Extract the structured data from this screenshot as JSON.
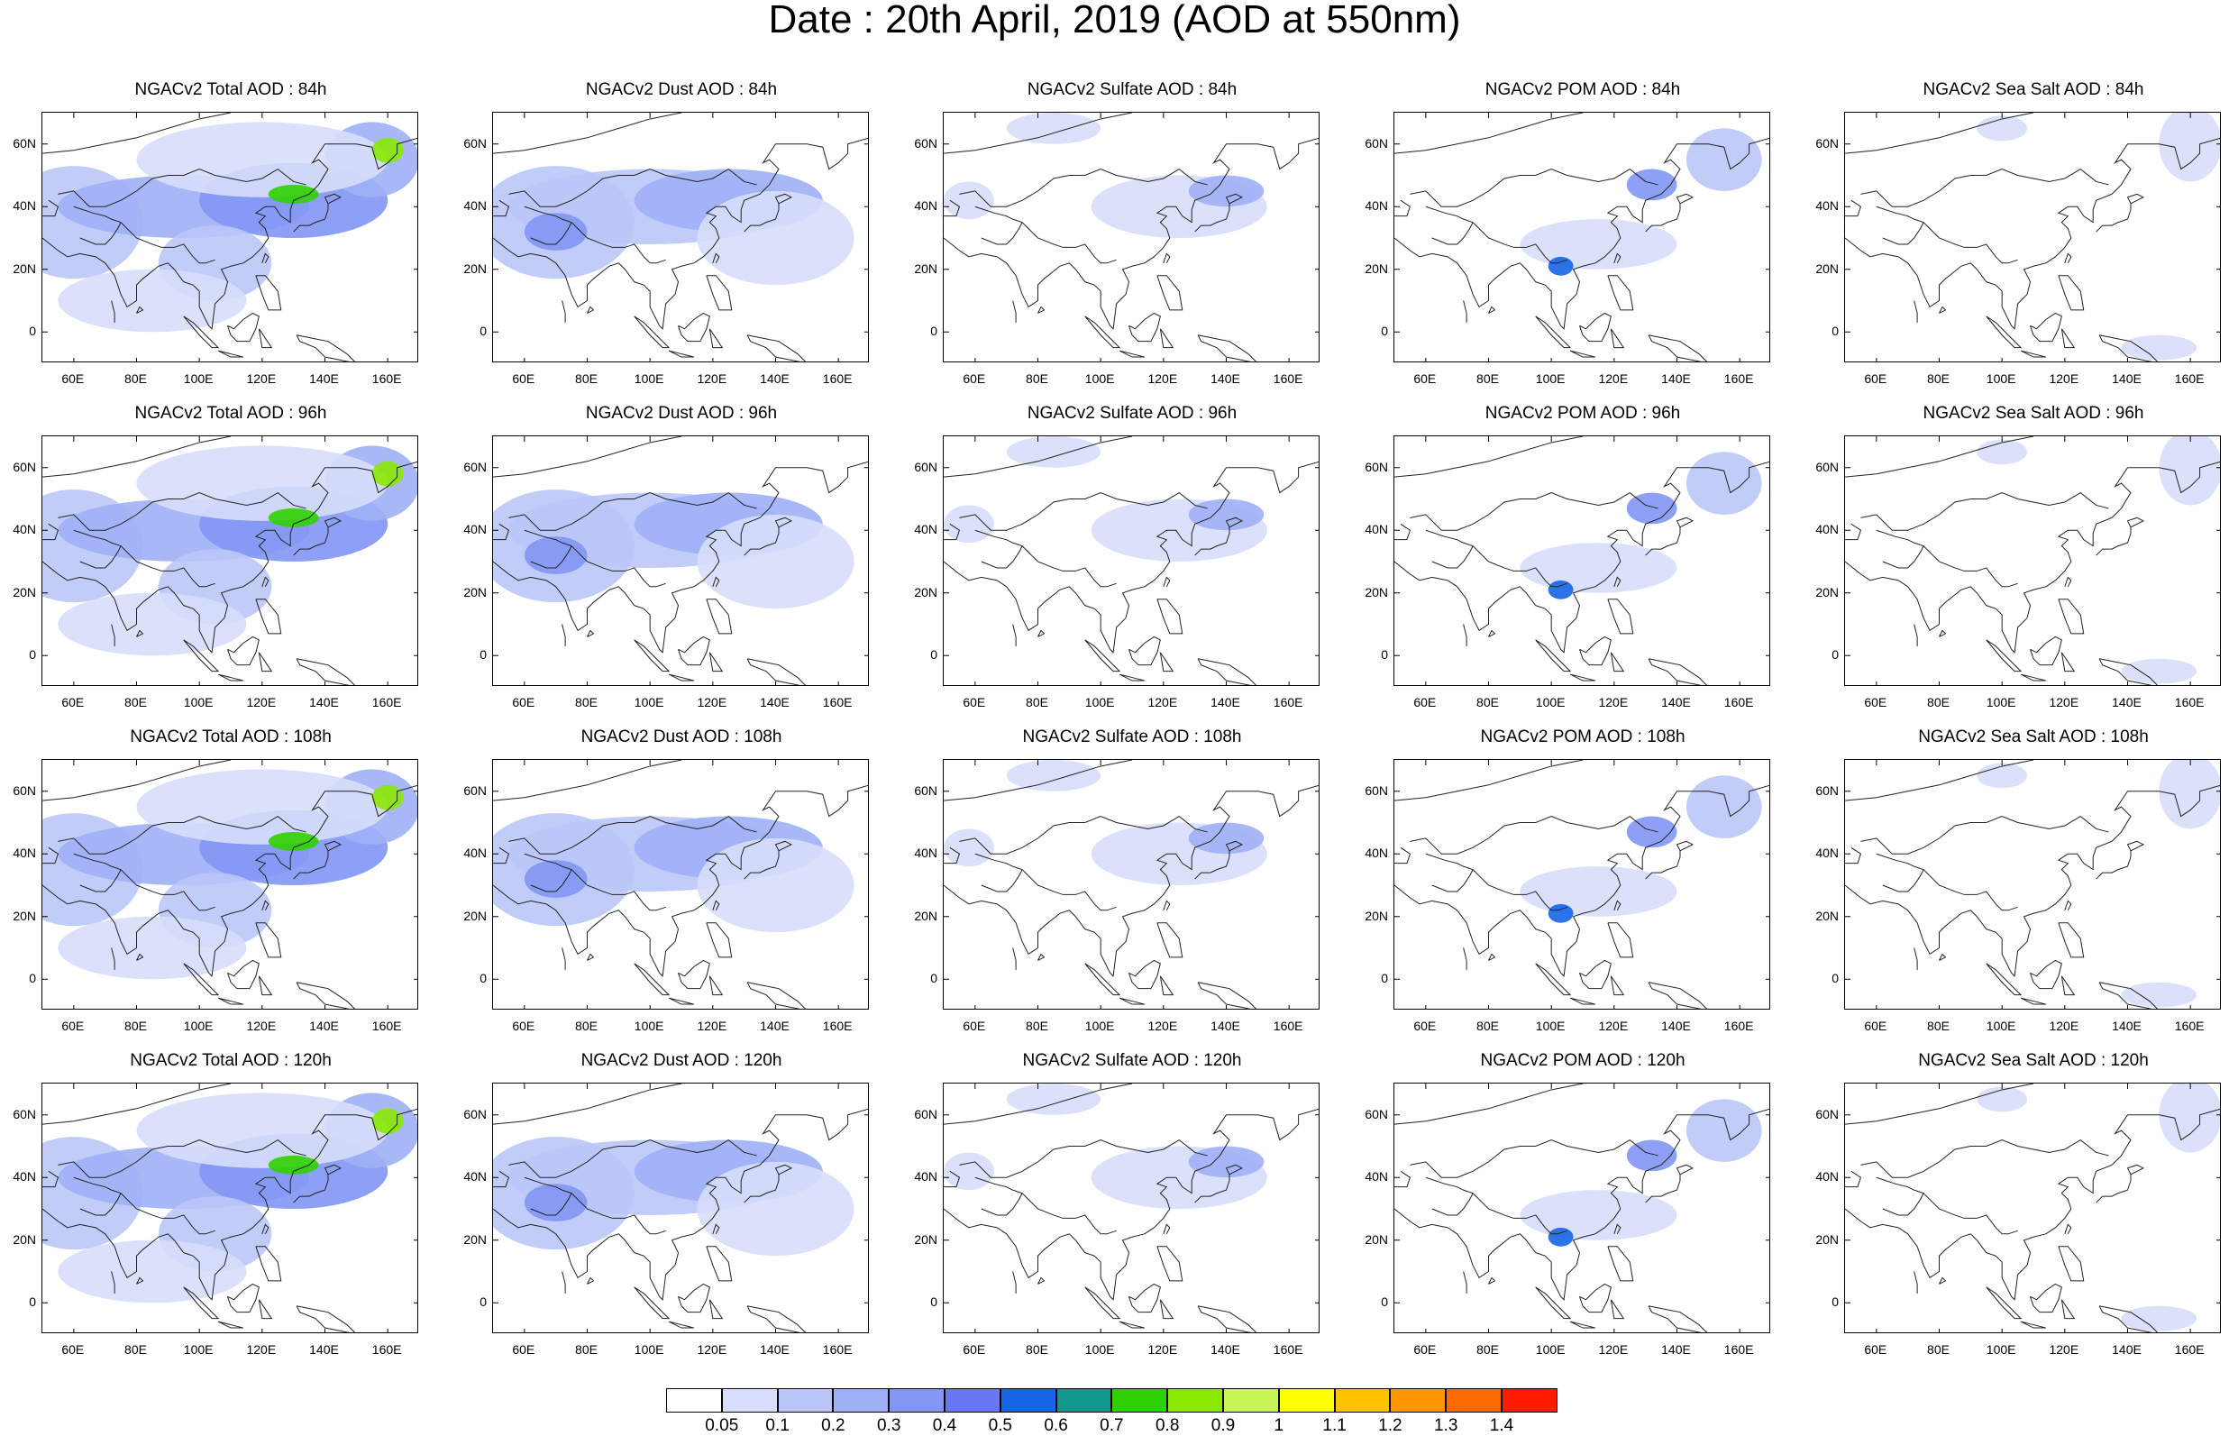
{
  "title": "Date : 20th April, 2019 (AOD at 550nm)",
  "map": {
    "lat_ticks": [
      "60N",
      "40N",
      "20N",
      "0"
    ],
    "lon_ticks": [
      "60E",
      "80E",
      "100E",
      "120E",
      "140E",
      "160E"
    ],
    "lat_range": [
      -10,
      70
    ],
    "lon_range": [
      50,
      170
    ]
  },
  "panels": [
    {
      "title": "NGACv2 Total AOD : 84h",
      "species": "total",
      "hour": 84
    },
    {
      "title": "NGACv2 Dust AOD : 84h",
      "species": "dust",
      "hour": 84
    },
    {
      "title": "NGACv2 Sulfate AOD : 84h",
      "species": "sulfate",
      "hour": 84
    },
    {
      "title": "NGACv2 POM AOD : 84h",
      "species": "pom",
      "hour": 84
    },
    {
      "title": "NGACv2 Sea Salt AOD : 84h",
      "species": "seasalt",
      "hour": 84
    },
    {
      "title": "NGACv2 Total AOD : 96h",
      "species": "total",
      "hour": 96
    },
    {
      "title": "NGACv2 Dust AOD : 96h",
      "species": "dust",
      "hour": 96
    },
    {
      "title": "NGACv2 Sulfate AOD : 96h",
      "species": "sulfate",
      "hour": 96
    },
    {
      "title": "NGACv2 POM AOD : 96h",
      "species": "pom",
      "hour": 96
    },
    {
      "title": "NGACv2 Sea Salt AOD : 96h",
      "species": "seasalt",
      "hour": 96
    },
    {
      "title": "NGACv2 Total AOD : 108h",
      "species": "total",
      "hour": 108
    },
    {
      "title": "NGACv2 Dust AOD : 108h",
      "species": "dust",
      "hour": 108
    },
    {
      "title": "NGACv2 Sulfate AOD : 108h",
      "species": "sulfate",
      "hour": 108
    },
    {
      "title": "NGACv2 POM AOD : 108h",
      "species": "pom",
      "hour": 108
    },
    {
      "title": "NGACv2 Sea Salt AOD : 108h",
      "species": "seasalt",
      "hour": 108
    },
    {
      "title": "NGACv2 Total AOD : 120h",
      "species": "total",
      "hour": 120
    },
    {
      "title": "NGACv2 Dust AOD : 120h",
      "species": "dust",
      "hour": 120
    },
    {
      "title": "NGACv2 Sulfate AOD : 120h",
      "species": "sulfate",
      "hour": 120
    },
    {
      "title": "NGACv2 POM AOD : 120h",
      "species": "pom",
      "hour": 120
    },
    {
      "title": "NGACv2 Sea Salt  AOD : 120h",
      "species": "seasalt",
      "hour": 120
    }
  ],
  "colorbar": {
    "labels": [
      "0.05",
      "0.1",
      "0.2",
      "0.3",
      "0.4",
      "0.5",
      "0.6",
      "0.7",
      "0.8",
      "0.9",
      "1",
      "1.1",
      "1.2",
      "1.3",
      "1.4"
    ],
    "colors": [
      "#ffffff",
      "#d7defb",
      "#bac6f8",
      "#9eb0f6",
      "#8296f4",
      "#6878f2",
      "#1565e6",
      "#12978c",
      "#2ed100",
      "#88e800",
      "#c6f556",
      "#ffff00",
      "#ffc200",
      "#ff9800",
      "#ff6a00",
      "#ff1a00"
    ]
  },
  "fields": {
    "total": [
      {
        "lon": 60,
        "lat": 35,
        "rx": 22,
        "ry": 18,
        "level": 2
      },
      {
        "lon": 95,
        "lat": 40,
        "rx": 40,
        "ry": 10,
        "level": 3
      },
      {
        "lon": 130,
        "lat": 42,
        "rx": 30,
        "ry": 12,
        "level": 4
      },
      {
        "lon": 105,
        "lat": 22,
        "rx": 18,
        "ry": 12,
        "level": 2
      },
      {
        "lon": 155,
        "lat": 55,
        "rx": 15,
        "ry": 12,
        "level": 3
      },
      {
        "lon": 85,
        "lat": 10,
        "rx": 30,
        "ry": 10,
        "level": 1
      },
      {
        "lon": 120,
        "lat": 55,
        "rx": 40,
        "ry": 12,
        "level": 1
      },
      {
        "lon": 130,
        "lat": 44,
        "rx": 8,
        "ry": 3,
        "level": 8
      },
      {
        "lon": 160,
        "lat": 58,
        "rx": 5,
        "ry": 4,
        "level": 9
      }
    ],
    "dust": [
      {
        "lon": 70,
        "lat": 35,
        "rx": 25,
        "ry": 18,
        "level": 2
      },
      {
        "lon": 100,
        "lat": 40,
        "rx": 45,
        "ry": 12,
        "level": 2
      },
      {
        "lon": 70,
        "lat": 32,
        "rx": 10,
        "ry": 6,
        "level": 4
      },
      {
        "lon": 125,
        "lat": 42,
        "rx": 30,
        "ry": 10,
        "level": 3
      },
      {
        "lon": 140,
        "lat": 30,
        "rx": 25,
        "ry": 15,
        "level": 1
      }
    ],
    "sulfate": [
      {
        "lon": 125,
        "lat": 40,
        "rx": 28,
        "ry": 10,
        "level": 1
      },
      {
        "lon": 140,
        "lat": 45,
        "rx": 12,
        "ry": 5,
        "level": 3
      },
      {
        "lon": 58,
        "lat": 42,
        "rx": 8,
        "ry": 6,
        "level": 1
      },
      {
        "lon": 85,
        "lat": 65,
        "rx": 15,
        "ry": 5,
        "level": 1
      }
    ],
    "pom": [
      {
        "lon": 115,
        "lat": 28,
        "rx": 25,
        "ry": 8,
        "level": 1
      },
      {
        "lon": 155,
        "lat": 55,
        "rx": 12,
        "ry": 10,
        "level": 2
      },
      {
        "lon": 132,
        "lat": 47,
        "rx": 8,
        "ry": 5,
        "level": 4
      },
      {
        "lon": 103,
        "lat": 21,
        "rx": 4,
        "ry": 3,
        "level": 6
      }
    ],
    "seasalt": [
      {
        "lon": 160,
        "lat": 60,
        "rx": 10,
        "ry": 12,
        "level": 1
      },
      {
        "lon": 150,
        "lat": -5,
        "rx": 12,
        "ry": 4,
        "level": 1
      },
      {
        "lon": 100,
        "lat": 65,
        "rx": 8,
        "ry": 4,
        "level": 1
      }
    ]
  }
}
